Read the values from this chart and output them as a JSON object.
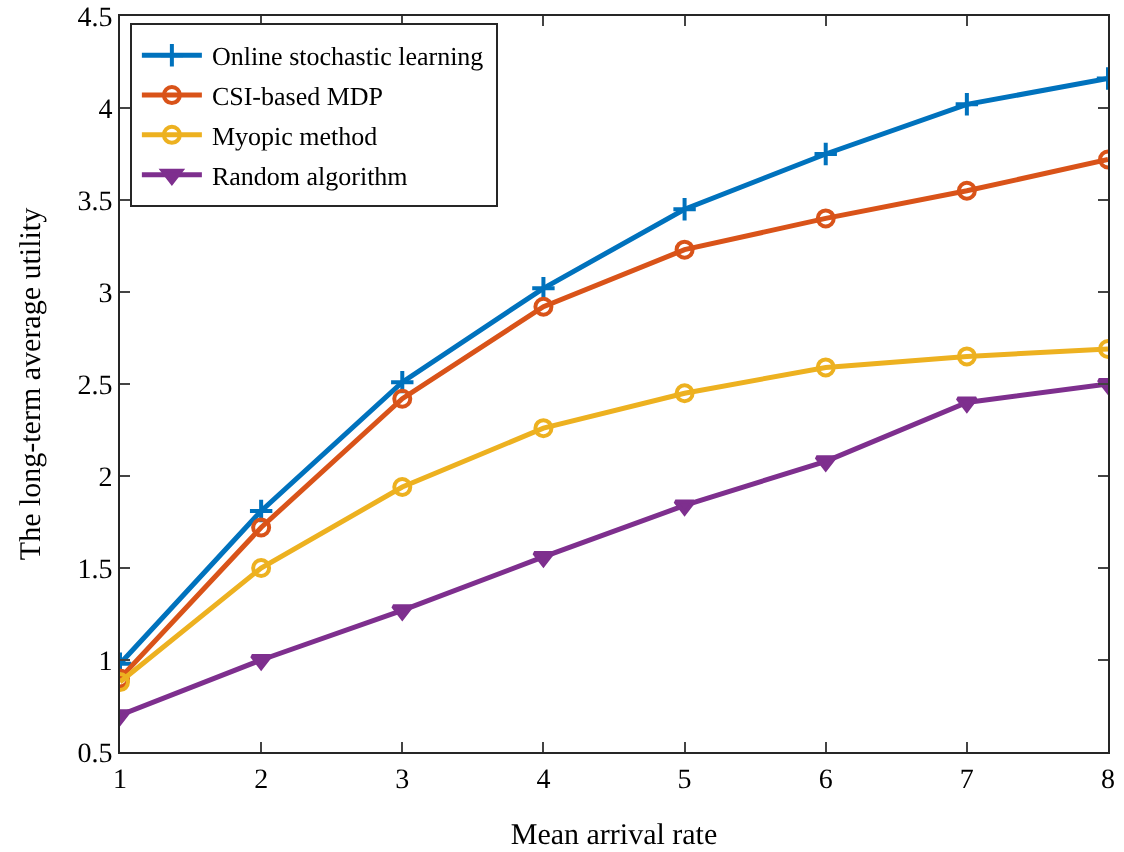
{
  "chart_data": {
    "type": "line",
    "xlabel": "Mean arrival rate",
    "ylabel": "The long-term average utility",
    "x": [
      1,
      2,
      3,
      4,
      5,
      6,
      7,
      8
    ],
    "series": [
      {
        "name": "Online stochastic learning",
        "color": "#0072bd",
        "marker": "cross",
        "values": [
          0.98,
          1.81,
          2.51,
          3.02,
          3.45,
          3.75,
          4.02,
          4.16
        ]
      },
      {
        "name": "CSI-based MDP",
        "color": "#d95319",
        "marker": "circle",
        "values": [
          0.9,
          1.72,
          2.42,
          2.92,
          3.23,
          3.4,
          3.55,
          3.72
        ]
      },
      {
        "name": "Myopic method",
        "color": "#edb120",
        "marker": "circle",
        "values": [
          0.88,
          1.5,
          1.94,
          2.26,
          2.45,
          2.59,
          2.65,
          2.69
        ]
      },
      {
        "name": "Random algorithm",
        "color": "#7e2f8e",
        "marker": "triangle",
        "values": [
          0.7,
          1.0,
          1.27,
          1.56,
          1.84,
          2.08,
          2.4,
          2.5
        ]
      }
    ],
    "xlim": [
      1,
      8
    ],
    "xticks": [
      1,
      2,
      3,
      4,
      5,
      6,
      7,
      8
    ],
    "ylim": [
      0.5,
      4.5
    ],
    "yticks": [
      0.5,
      1,
      1.5,
      2,
      2.5,
      3,
      3.5,
      4,
      4.5
    ],
    "grid": false,
    "legend": "top left",
    "line_style": "solid"
  }
}
